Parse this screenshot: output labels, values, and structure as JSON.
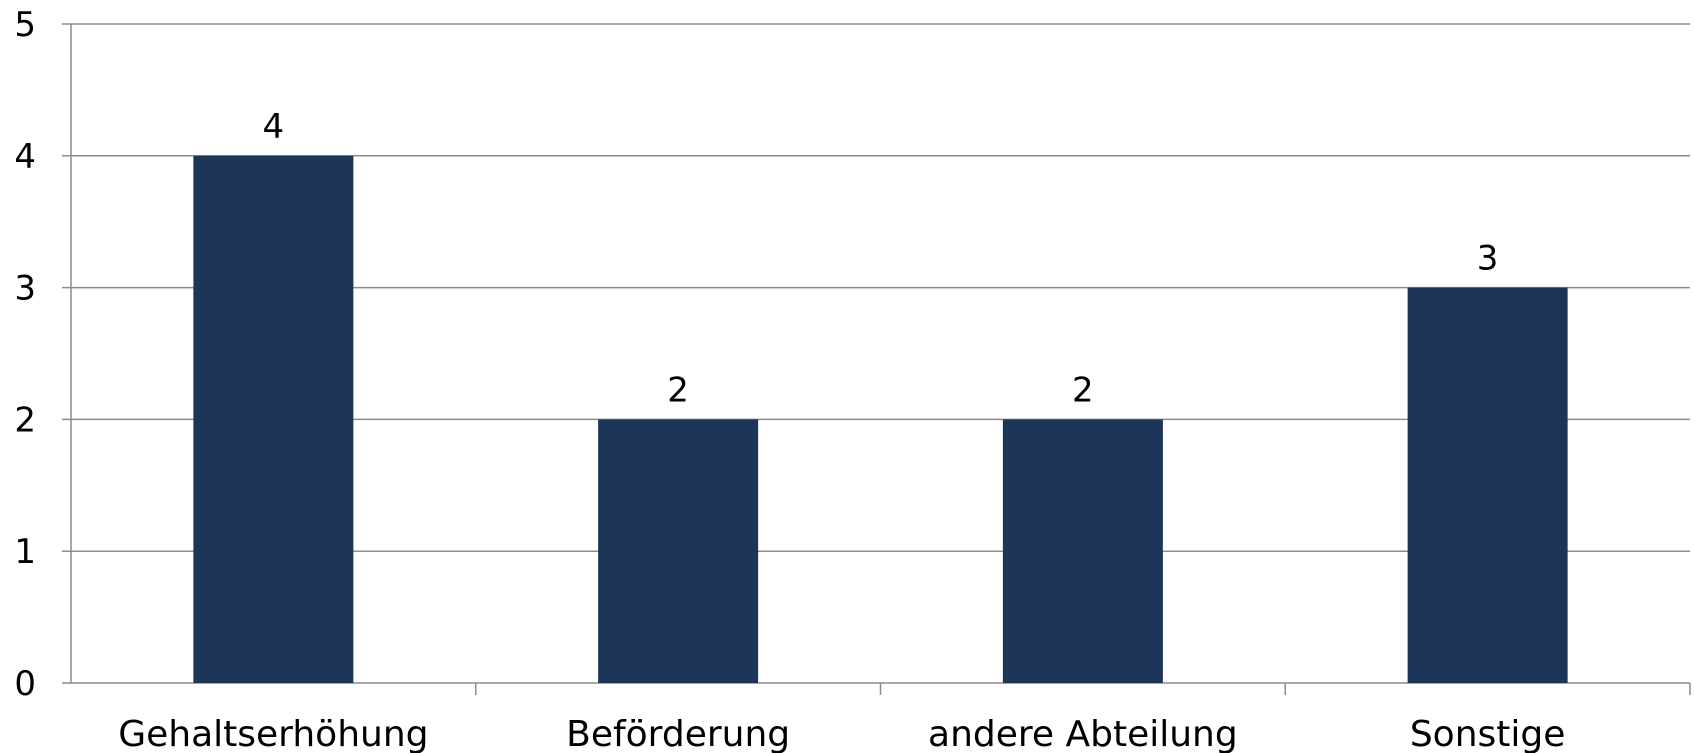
{
  "chart_data": {
    "type": "bar",
    "categories": [
      "Gehaltserhöhung",
      "Beförderung",
      "andere Abteilung",
      "Sonstige"
    ],
    "values": [
      4,
      2,
      2,
      3
    ],
    "data_labels": [
      "4",
      "2",
      "2",
      "3"
    ],
    "y_ticks": [
      "0",
      "1",
      "2",
      "3",
      "4",
      "5"
    ],
    "ylim": [
      0,
      5
    ],
    "grid": true,
    "legend": "none",
    "bar_color": "#1d3557",
    "gridline_color": "#8c8c8c",
    "title": "",
    "xlabel": "",
    "ylabel": ""
  }
}
